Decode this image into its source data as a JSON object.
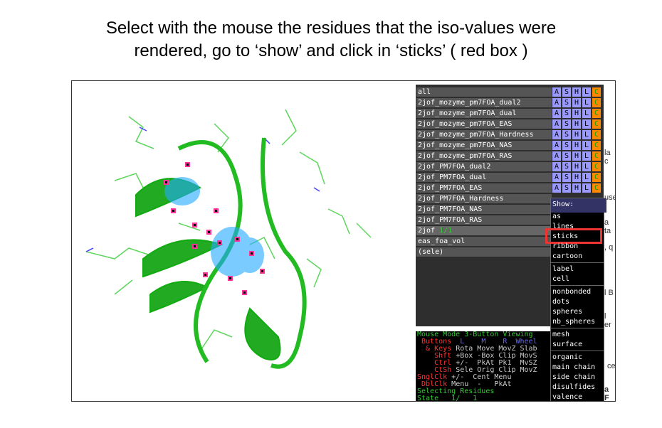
{
  "caption": {
    "lines": [
      "Select with the mouse the residues that the iso-values were",
      "rendered, go to ‘show’ and click in ‘sticks’ ( red box )"
    ]
  },
  "objects": [
    {
      "name": "all"
    },
    {
      "name": "2jof_mozyme_pm7FOA_dual2"
    },
    {
      "name": "2jof_mozyme_pm7FOA_dual"
    },
    {
      "name": "2jof_mozyme_pm7FOA_EAS"
    },
    {
      "name": "2jof_mozyme_pm7FOA_Hardness"
    },
    {
      "name": "2jof_mozyme_pm7FOA_NAS"
    },
    {
      "name": "2jof_mozyme_pm7FOA_RAS"
    },
    {
      "name": "2jof_PM7FOA_dual2"
    },
    {
      "name": "2jof_PM7FOA_dual"
    },
    {
      "name": "2jof_PM7FOA_EAS"
    },
    {
      "name": "2jof_PM7FOA_Hardness"
    },
    {
      "name": "2jof_PM7FOA_NAS"
    },
    {
      "name": "2jof_PM7FOA_RAS"
    },
    {
      "name": "2jof",
      "state": "1/1"
    },
    {
      "name": "eas_foa_vol"
    },
    {
      "name": "(sele)"
    }
  ],
  "buttons": [
    "A",
    "S",
    "H",
    "L",
    "C"
  ],
  "menu": {
    "title": "Show:",
    "groups": [
      [
        "as",
        "lines",
        "sticks",
        "ribbon",
        "cartoon"
      ],
      [
        "label",
        "cell"
      ],
      [
        "nonbonded",
        "dots",
        "spheres",
        "nb_spheres"
      ],
      [
        "mesh",
        "surface"
      ],
      [
        "organic",
        "main chain",
        "side chain",
        "disulfides",
        "valence"
      ]
    ]
  },
  "mouse": {
    "lines": [
      [
        "Mouse Mode 3-Button Viewing"
      ],
      [
        " Buttons",
        "  L    M    R  Wheel"
      ],
      [
        "  & Keys",
        " Rota Move MovZ Slab"
      ],
      [
        "    Shft",
        " +Box -Box Clip MovS"
      ],
      [
        "    Ctrl",
        " +/-  PkAt Pk1  MvSZ"
      ],
      [
        "    CtSh",
        " Sele Orig Clip MovZ"
      ],
      [
        "SnglClk",
        " +/-  Cent Menu"
      ],
      [
        " DblClk",
        " Menu  -   PkAt"
      ],
      [
        "Selecting Residues"
      ],
      [
        "State",
        "   1/   1"
      ]
    ]
  },
  "background": {
    "fragments": [
      "la c",
      "use",
      "a ta",
      ", q",
      "l B",
      "l er",
      "ce",
      "a F"
    ]
  }
}
